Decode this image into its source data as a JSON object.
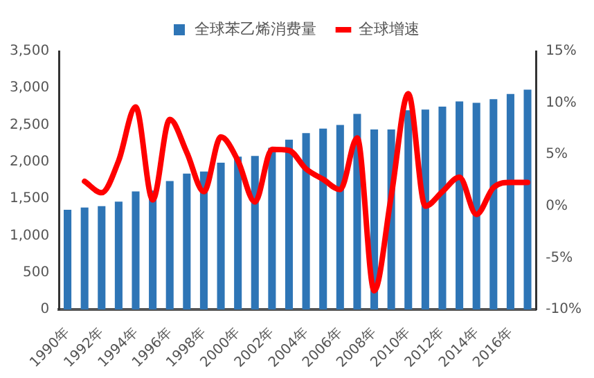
{
  "chart_data": {
    "type": "bar",
    "categories": [
      "1990年",
      null,
      "1992年",
      null,
      "1994年",
      null,
      "1996年",
      null,
      "1998年",
      null,
      "2000年",
      null,
      "2002年",
      null,
      "2004年",
      null,
      "2006年",
      null,
      "2008年",
      null,
      "2010年",
      null,
      "2012年",
      null,
      "2014年",
      null,
      "2016年",
      null
    ],
    "series": [
      {
        "name": "全球苯乙烯消费量",
        "color": "#2e75b6",
        "values": [
          1350,
          1380,
          1400,
          1460,
          1600,
          1610,
          1740,
          1840,
          1870,
          1990,
          2070,
          2080,
          2190,
          2300,
          2390,
          2450,
          2500,
          2650,
          2440,
          2440,
          2700,
          2710,
          2750,
          2820,
          2800,
          2850,
          2920,
          2980
        ]
      },
      {
        "name": "全球增速",
        "type": "line",
        "axis": "y2",
        "color": "#ff0000",
        "values": [
          null,
          2.4,
          1.3,
          4.4,
          9.6,
          0.6,
          8.4,
          5.2,
          1.4,
          6.7,
          4.4,
          0.4,
          5.5,
          5.4,
          3.6,
          2.6,
          1.6,
          6.6,
          -8.2,
          1.0,
          10.9,
          0.0,
          1.4,
          2.8,
          -0.8,
          1.8,
          2.3,
          2.3
        ]
      }
    ],
    "ylim": [
      0,
      3500
    ],
    "yticks": [
      0,
      {
        "value": 500,
        "label": "500"
      },
      {
        "value": 1000,
        "label": "1,000"
      },
      {
        "value": 1500,
        "label": "1,500"
      },
      {
        "value": 2000,
        "label": "2,000"
      },
      {
        "value": 2500,
        "label": "2,500"
      },
      {
        "value": 3000,
        "label": "3,000"
      },
      {
        "value": 3500,
        "label": "3,500"
      }
    ],
    "y2lim": [
      -10,
      15
    ],
    "y2ticks": [
      {
        "value": -10,
        "label": "-10%"
      },
      {
        "value": -5,
        "label": "-5%"
      },
      {
        "value": 0,
        "label": "0%"
      },
      {
        "value": 5,
        "label": "5%"
      },
      {
        "value": 10,
        "label": "10%"
      },
      {
        "value": 15,
        "label": "15%"
      }
    ],
    "grid": false,
    "legend": "top",
    "marker": "none"
  }
}
